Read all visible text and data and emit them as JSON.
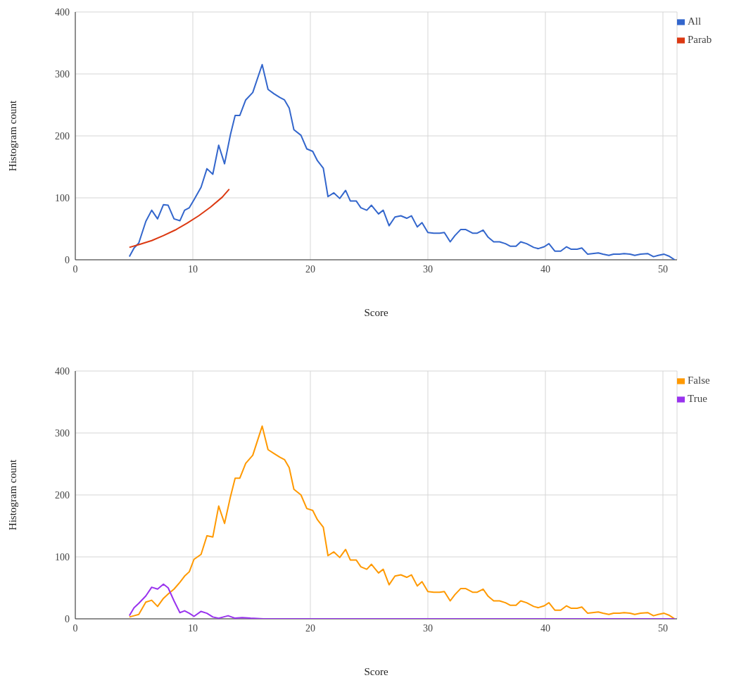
{
  "chart_data": [
    {
      "type": "line",
      "xlabel": "Score",
      "ylabel": "Histogram count",
      "xlim": [
        0,
        51.2
      ],
      "xticks": [
        0,
        10,
        20,
        30,
        40,
        50
      ],
      "ylim": [
        0,
        400
      ],
      "yticks": [
        0,
        100,
        200,
        300,
        400
      ],
      "grid": true,
      "legend": "top right",
      "series": [
        {
          "name": "All",
          "color": "#3366cc",
          "x": [
            4.6,
            5.0,
            5.4,
            6.0,
            6.5,
            7.0,
            7.5,
            7.9,
            8.4,
            8.9,
            9.3,
            9.7,
            10.1,
            10.7,
            11.2,
            11.7,
            12.2,
            12.7,
            13.2,
            13.6,
            14.0,
            14.5,
            15.1,
            15.9,
            16.4,
            16.9,
            17.4,
            17.8,
            18.2,
            18.6,
            19.2,
            19.7,
            20.2,
            20.6,
            21.1,
            21.5,
            22.0,
            22.5,
            23.0,
            23.4,
            23.9,
            24.3,
            24.8,
            25.2,
            25.8,
            26.2,
            26.7,
            27.2,
            27.7,
            28.2,
            28.6,
            29.1,
            29.5,
            30.0,
            30.5,
            31.0,
            31.4,
            31.9,
            32.3,
            32.8,
            33.2,
            33.8,
            34.2,
            34.7,
            35.1,
            35.6,
            36.1,
            36.6,
            37.0,
            37.5,
            37.9,
            38.4,
            39.0,
            39.4,
            39.9,
            40.3,
            40.8,
            41.3,
            41.8,
            42.2,
            42.7,
            43.1,
            43.6,
            44.0,
            44.5,
            44.9,
            45.4,
            45.8,
            46.3,
            46.7,
            47.2,
            47.6,
            48.1,
            48.7,
            49.2,
            49.6,
            50.1,
            50.5,
            51.0
          ],
          "values": [
            5,
            19,
            27,
            62,
            80,
            66,
            89,
            88,
            66,
            63,
            80,
            84,
            97,
            117,
            147,
            138,
            185,
            155,
            202,
            233,
            233,
            258,
            270,
            315,
            275,
            268,
            262,
            258,
            245,
            210,
            201,
            179,
            175,
            160,
            148,
            102,
            108,
            99,
            112,
            95,
            95,
            84,
            80,
            88,
            74,
            80,
            55,
            69,
            71,
            67,
            71,
            53,
            60,
            44,
            43,
            43,
            44,
            29,
            39,
            49,
            49,
            43,
            43,
            48,
            37,
            29,
            29,
            26,
            22,
            22,
            29,
            26,
            20,
            18,
            21,
            26,
            14,
            14,
            21,
            17,
            17,
            19,
            9,
            10,
            11,
            9,
            7,
            9,
            9,
            10,
            9,
            7,
            9,
            10,
            5,
            7,
            9,
            6,
            0
          ]
        },
        {
          "name": "Parab",
          "color": "#dc3912",
          "x": [
            4.6,
            5.5,
            6.5,
            7.5,
            8.5,
            9.5,
            10.5,
            11.5,
            12.5,
            13.1
          ],
          "values": [
            20,
            25,
            31,
            39,
            48,
            59,
            71,
            85,
            101,
            114
          ]
        }
      ]
    },
    {
      "type": "line",
      "xlabel": "Score",
      "ylabel": "Histogram count",
      "xlim": [
        0,
        51.2
      ],
      "xticks": [
        0,
        10,
        20,
        30,
        40,
        50
      ],
      "ylim": [
        0,
        400
      ],
      "yticks": [
        0,
        100,
        200,
        300,
        400
      ],
      "grid": true,
      "legend": "top right",
      "series": [
        {
          "name": "False",
          "color": "#ff9900",
          "x": [
            4.6,
            5.0,
            5.4,
            6.0,
            6.5,
            7.0,
            7.5,
            7.9,
            8.4,
            8.9,
            9.3,
            9.7,
            10.1,
            10.7,
            11.2,
            11.7,
            12.2,
            12.7,
            13.2,
            13.6,
            14.0,
            14.5,
            15.1,
            15.9,
            16.4,
            16.9,
            17.4,
            17.8,
            18.2,
            18.6,
            19.2,
            19.7,
            20.2,
            20.6,
            21.1,
            21.5,
            22.0,
            22.5,
            23.0,
            23.4,
            23.9,
            24.3,
            24.8,
            25.2,
            25.8,
            26.2,
            26.7,
            27.2,
            27.7,
            28.2,
            28.6,
            29.1,
            29.5,
            30.0,
            30.5,
            31.0,
            31.4,
            31.9,
            32.3,
            32.8,
            33.2,
            33.8,
            34.2,
            34.7,
            35.1,
            35.6,
            36.1,
            36.6,
            37.0,
            37.5,
            37.9,
            38.4,
            39.0,
            39.4,
            39.9,
            40.3,
            40.8,
            41.3,
            41.8,
            42.2,
            42.7,
            43.1,
            43.6,
            44.0,
            44.5,
            44.9,
            45.4,
            45.8,
            46.3,
            46.7,
            47.2,
            47.6,
            48.1,
            48.7,
            49.2,
            49.6,
            50.1,
            50.5,
            51.0
          ],
          "values": [
            3,
            5,
            7,
            27,
            30,
            20,
            33,
            40,
            48,
            59,
            69,
            76,
            96,
            104,
            134,
            132,
            182,
            154,
            197,
            227,
            227,
            251,
            264,
            311,
            273,
            267,
            261,
            257,
            244,
            209,
            200,
            178,
            175,
            160,
            148,
            102,
            108,
            99,
            112,
            95,
            95,
            84,
            80,
            88,
            74,
            80,
            55,
            69,
            71,
            67,
            71,
            53,
            60,
            44,
            43,
            43,
            44,
            29,
            39,
            49,
            49,
            43,
            43,
            48,
            37,
            29,
            29,
            26,
            22,
            22,
            29,
            26,
            20,
            18,
            21,
            26,
            14,
            14,
            21,
            17,
            17,
            19,
            9,
            10,
            11,
            9,
            7,
            9,
            9,
            10,
            9,
            7,
            9,
            10,
            5,
            7,
            9,
            6,
            0
          ]
        },
        {
          "name": "True",
          "color": "#9933ee",
          "x": [
            4.6,
            5.0,
            5.4,
            6.0,
            6.5,
            7.0,
            7.5,
            7.9,
            8.4,
            8.9,
            9.3,
            9.7,
            10.1,
            10.7,
            11.2,
            11.7,
            12.2,
            13.0,
            13.6,
            14.2,
            14.9,
            16.0,
            20.0,
            30.0,
            40.0,
            51.0
          ],
          "values": [
            5,
            18,
            25,
            37,
            51,
            48,
            56,
            50,
            29,
            10,
            13,
            9,
            4,
            12,
            9,
            3,
            1,
            5,
            1,
            2,
            1,
            0,
            0,
            0,
            0,
            0
          ]
        }
      ]
    }
  ]
}
